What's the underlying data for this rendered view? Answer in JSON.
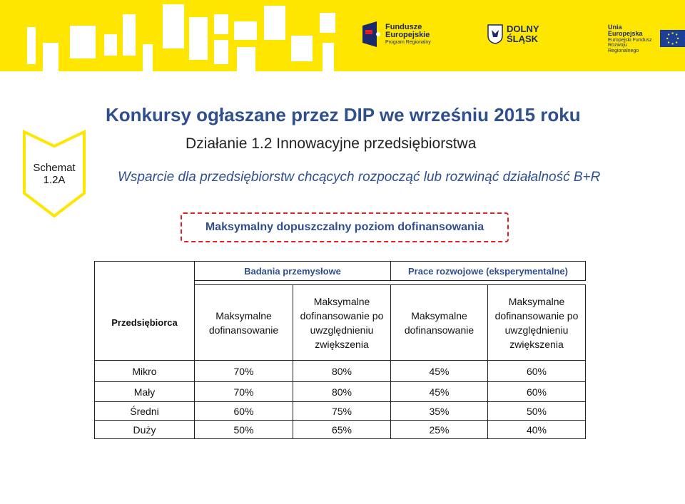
{
  "header": {
    "logos": {
      "eu_funds": [
        "Fundusze",
        "Europejskie",
        "Program Regionalny"
      ],
      "dolny_slask": [
        "DOLNY",
        "ŚLĄSK"
      ],
      "unia": [
        "Unia Europejska",
        "Europejski Fundusz",
        "Rozwoju Regionalnego"
      ]
    }
  },
  "schema": {
    "line1": "Schemat",
    "line2": "1.2A"
  },
  "title": "Konkursy ogłaszane przez DIP we wrześniu 2015 roku",
  "subtitle1": "Działanie 1.2 Innowacyjne przedsiębiorstwa",
  "subtitle2": "Wsparcie dla przedsiębiorstw chcących rozpocząć lub rozwinąć działalność B+R",
  "highlight": "Maksymalny dopuszczalny poziom dofinansowania",
  "table": {
    "group_headers": [
      "Badania przemysłowe",
      "Prace rozwojowe (eksperymentalne)"
    ],
    "row_header": "Przedsiębiorca",
    "sub_headers": [
      "Maksymalne dofinansowanie",
      "Maksymalne dofinansowanie po uwzględnieniu zwiększenia",
      "Maksymalne dofinansowanie",
      "Maksymalne dofinansowanie po uwzględnieniu zwiększenia"
    ],
    "rows": [
      {
        "label": "Mikro",
        "values": [
          "70%",
          "80%",
          "45%",
          "60%"
        ]
      },
      {
        "label": "Mały",
        "values": [
          "70%",
          "80%",
          "45%",
          "60%"
        ]
      },
      {
        "label": "Średni",
        "values": [
          "60%",
          "75%",
          "35%",
          "50%"
        ]
      },
      {
        "label": "Duży",
        "values": [
          "50%",
          "65%",
          "25%",
          "40%"
        ]
      }
    ]
  },
  "colors": {
    "banner": "#ffe600",
    "title": "#2f4f8f",
    "highlight_border": "#e31e24"
  }
}
